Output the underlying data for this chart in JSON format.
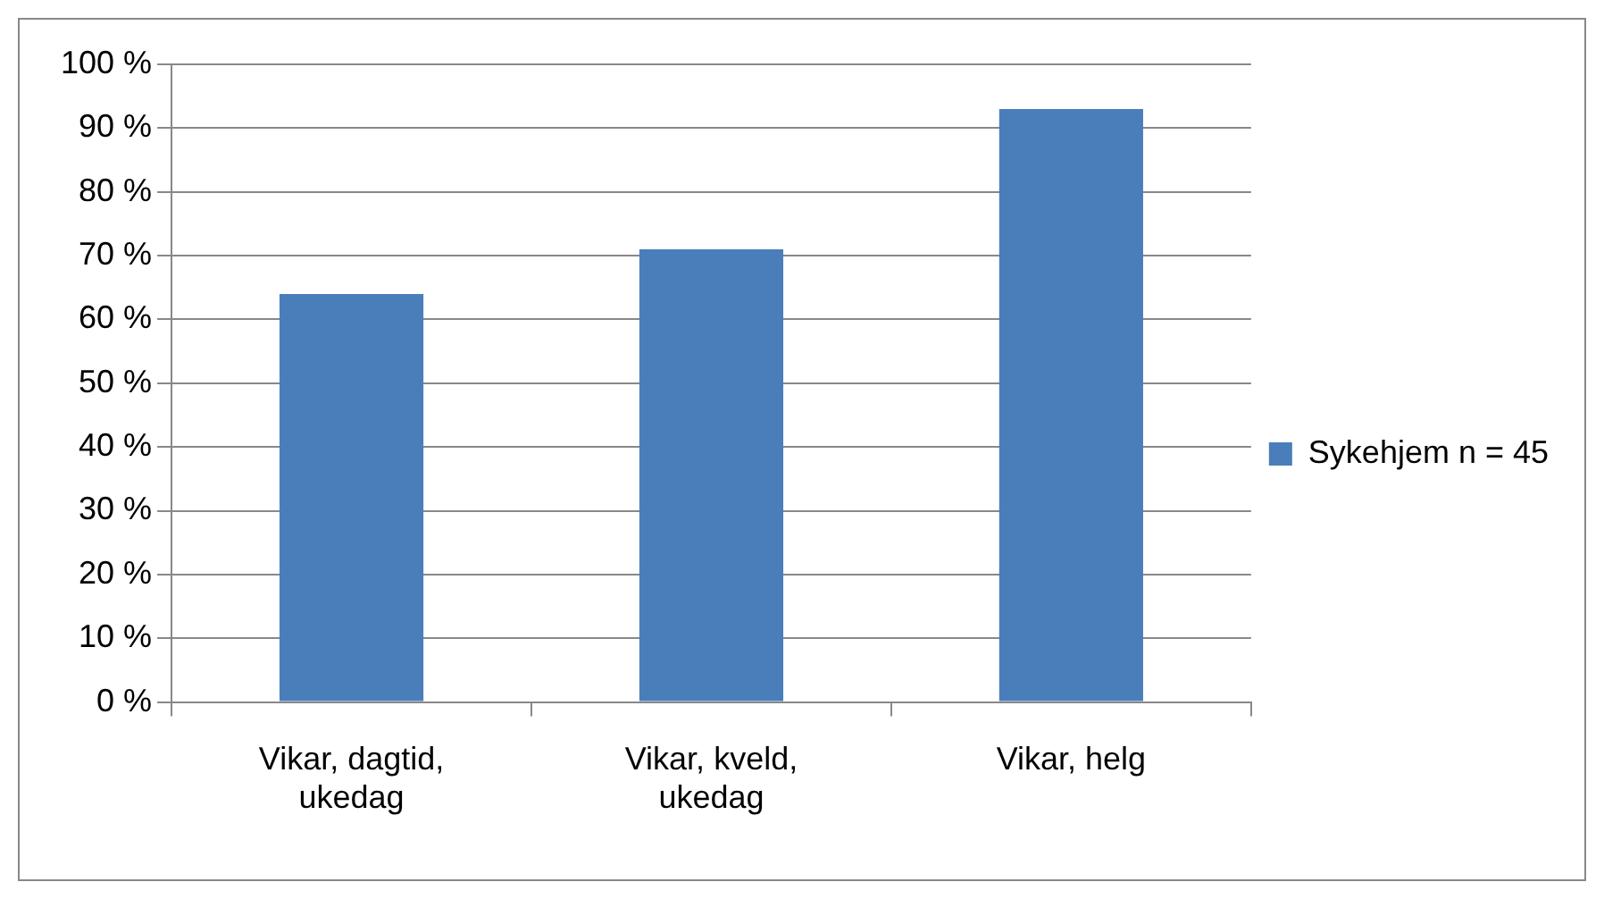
{
  "chart_data": {
    "type": "bar",
    "categories": [
      "Vikar, dagtid, ukedag",
      "Vikar, kveld, ukedag",
      "Vikar, helg"
    ],
    "series": [
      {
        "name": "Sykehjem n = 45",
        "color": "#4a7ebb",
        "values": [
          64,
          71,
          93
        ]
      }
    ],
    "ylim": [
      0,
      100
    ],
    "yticks": [
      {
        "value": 0,
        "label": "0 %"
      },
      {
        "value": 10,
        "label": "10 %"
      },
      {
        "value": 20,
        "label": "20 %"
      },
      {
        "value": 30,
        "label": "30 %"
      },
      {
        "value": 40,
        "label": "40 %"
      },
      {
        "value": 50,
        "label": "50 %"
      },
      {
        "value": 60,
        "label": "60 %"
      },
      {
        "value": 70,
        "label": "70 %"
      },
      {
        "value": 80,
        "label": "80 %"
      },
      {
        "value": 90,
        "label": "90 %"
      },
      {
        "value": 100,
        "label": "100 %"
      }
    ],
    "grid": "y",
    "legend": "right"
  }
}
